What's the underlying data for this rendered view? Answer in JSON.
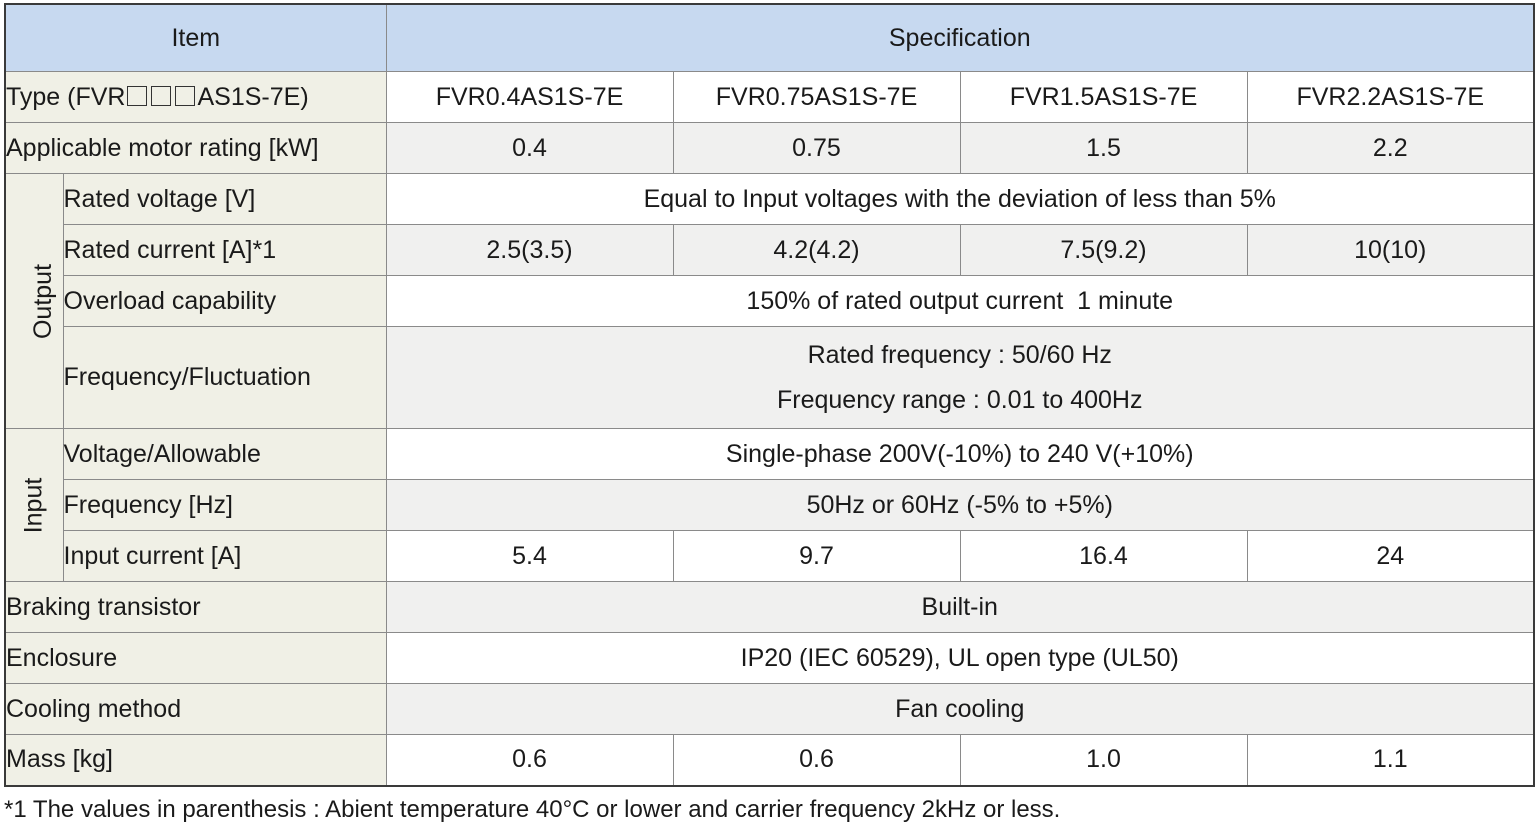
{
  "header": {
    "item": "Item",
    "specification": "Specification"
  },
  "rows": {
    "type": {
      "label_prefix": "Type (FVR",
      "label_suffix": "AS1S-7E)",
      "values": [
        "FVR0.4AS1S-7E",
        "FVR0.75AS1S-7E",
        "FVR1.5AS1S-7E",
        "FVR2.2AS1S-7E"
      ]
    },
    "motor": {
      "label": "Applicable motor rating [kW]",
      "values": [
        "0.4",
        "0.75",
        "1.5",
        "2.2"
      ]
    },
    "output": {
      "group": "Output",
      "rated_voltage": {
        "label": "Rated voltage [V]",
        "value": "Equal to Input voltages with the deviation of less than 5%"
      },
      "rated_current": {
        "label": "Rated current [A]*1",
        "values": [
          "2.5(3.5)",
          "4.2(4.2)",
          "7.5(9.2)",
          "10(10)"
        ]
      },
      "overload": {
        "label": "Overload capability",
        "value": "150% of rated output current  1 minute"
      },
      "frequency": {
        "label": "Frequency/Fluctuation",
        "line1": "Rated frequency : 50/60 Hz",
        "line2": "Frequency range : 0.01 to 400Hz"
      }
    },
    "input": {
      "group": "Input",
      "voltage": {
        "label": "Voltage/Allowable",
        "value": "Single-phase 200V(-10%) to 240 V(+10%)"
      },
      "frequency": {
        "label": "Frequency [Hz]",
        "value": "50Hz or 60Hz (-5% to +5%)"
      },
      "current": {
        "label": "Input current [A]",
        "values": [
          "5.4",
          "9.7",
          "16.4",
          "24"
        ]
      }
    },
    "braking": {
      "label": "Braking transistor",
      "value": "Built-in"
    },
    "enclosure": {
      "label": "Enclosure",
      "value": "IP20 (IEC 60529), UL open type (UL50)"
    },
    "cooling": {
      "label": "Cooling method",
      "value": "Fan cooling"
    },
    "mass": {
      "label": "Mass [kg]",
      "values": [
        "0.6",
        "0.6",
        "1.0",
        "1.1"
      ]
    }
  },
  "footnote": "*1 The values in parenthesis : Abient temperature 40°C or lower and carrier frequency 2kHz or less."
}
